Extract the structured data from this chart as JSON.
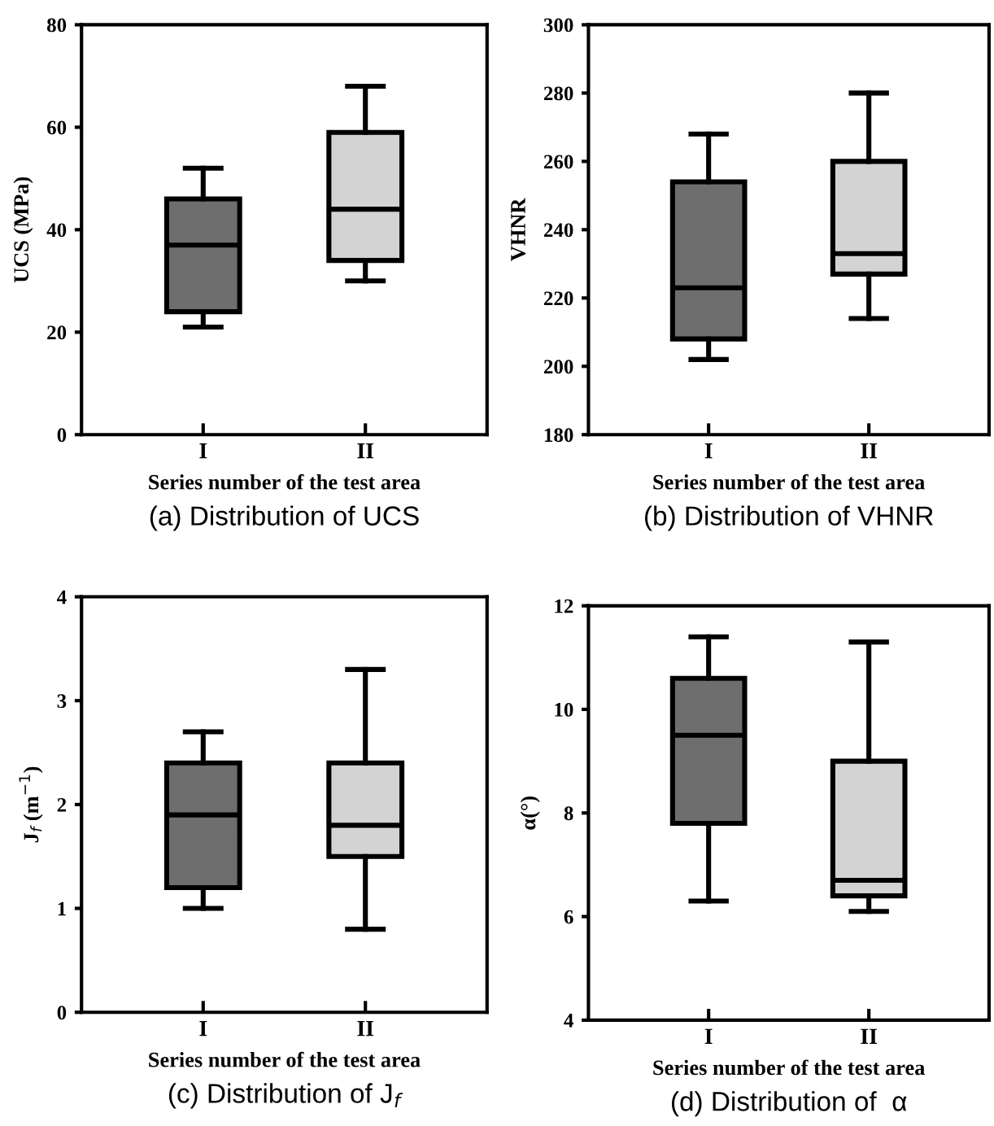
{
  "chart_data": [
    {
      "type": "box",
      "categories": [
        "I",
        "II"
      ],
      "xlabel": "Series number of the test area",
      "ylabel": "UCS (MPa)",
      "ylim": [
        0,
        80
      ],
      "yticks": [
        0,
        20,
        40,
        60,
        80
      ],
      "colors": [
        "#6e6e6e",
        "#d3d3d3"
      ],
      "grid": false,
      "legend": false,
      "annotations": [
        "(a) Distribution of UCS"
      ],
      "boxes": [
        {
          "low": 21,
          "q1": 24,
          "median": 37,
          "q3": 46,
          "high": 52
        },
        {
          "low": 30,
          "q1": 34,
          "median": 44,
          "q3": 59,
          "high": 68
        }
      ]
    },
    {
      "type": "box",
      "categories": [
        "I",
        "II"
      ],
      "xlabel": "Series number of the test area",
      "ylabel": "VHNR",
      "ylim": [
        180,
        300
      ],
      "yticks": [
        180,
        200,
        220,
        240,
        260,
        280,
        300
      ],
      "colors": [
        "#6e6e6e",
        "#d3d3d3"
      ],
      "grid": false,
      "legend": false,
      "annotations": [
        "(b) Distribution of VHNR"
      ],
      "boxes": [
        {
          "low": 202,
          "q1": 208,
          "median": 223,
          "q3": 254,
          "high": 268
        },
        {
          "low": 214,
          "q1": 227,
          "median": 233,
          "q3": 260,
          "high": 280
        }
      ]
    },
    {
      "type": "box",
      "categories": [
        "I",
        "II"
      ],
      "xlabel": "Series number of the test area",
      "ylabel": "J$_{f}$ (m$^{−1}$)",
      "ylim": [
        0,
        4
      ],
      "yticks": [
        0,
        1,
        2,
        3,
        4
      ],
      "colors": [
        "#6e6e6e",
        "#d3d3d3"
      ],
      "grid": false,
      "legend": false,
      "annotations": [
        "(c) Distribution of J$_{f}$"
      ],
      "boxes": [
        {
          "low": 1.0,
          "q1": 1.2,
          "median": 1.9,
          "q3": 2.4,
          "high": 2.7
        },
        {
          "low": 0.8,
          "q1": 1.5,
          "median": 1.8,
          "q3": 2.4,
          "high": 3.3
        }
      ]
    },
    {
      "type": "box",
      "categories": [
        "I",
        "II"
      ],
      "xlabel": "Series number of the test area",
      "ylabel": "α(°)",
      "ylim": [
        4,
        12
      ],
      "yticks": [
        4,
        6,
        8,
        10,
        12
      ],
      "colors": [
        "#6e6e6e",
        "#d3d3d3"
      ],
      "grid": false,
      "legend": false,
      "annotations": [
        "(d) Distribution of  α"
      ],
      "boxes": [
        {
          "low": 6.3,
          "q1": 7.8,
          "median": 9.5,
          "q3": 10.6,
          "high": 11.4
        },
        {
          "low": 6.1,
          "q1": 6.4,
          "median": 6.7,
          "q3": 9.0,
          "high": 11.3
        }
      ]
    }
  ]
}
